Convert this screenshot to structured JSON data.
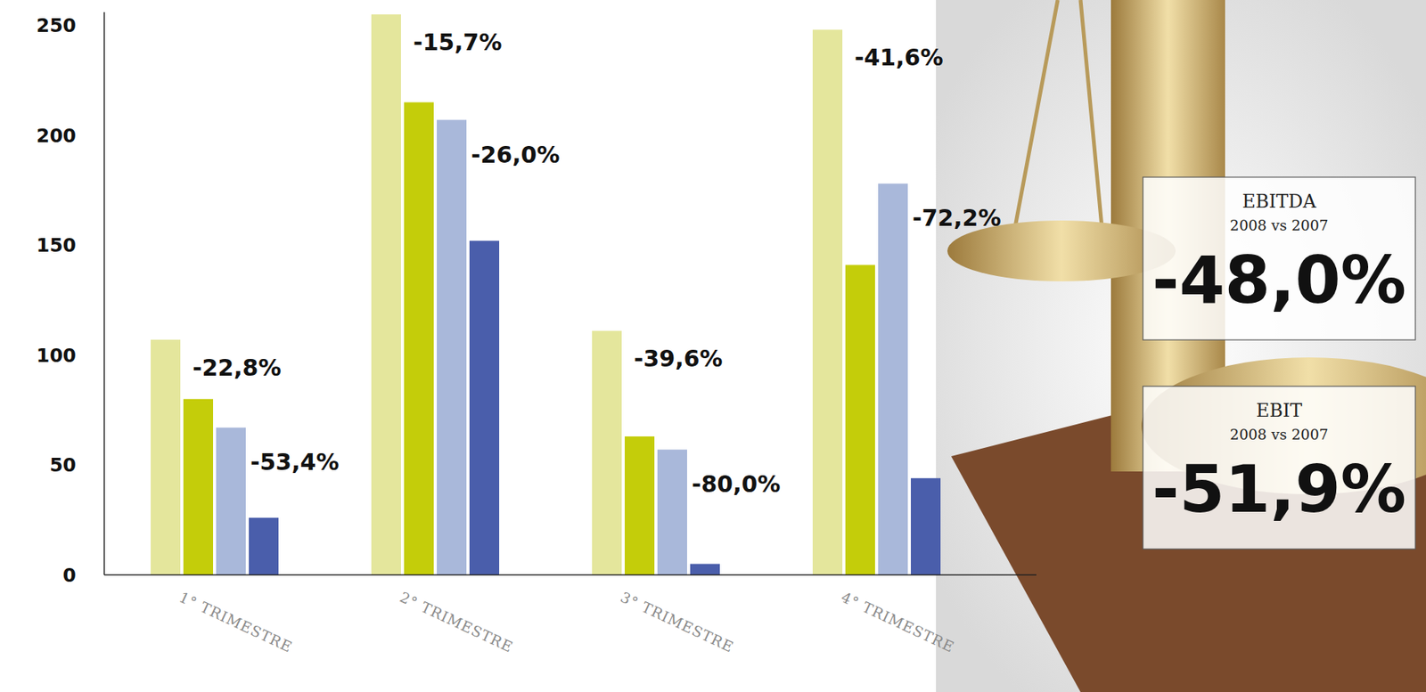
{
  "chart_data": {
    "type": "bar",
    "categories": [
      "1° TRIMESTRE",
      "2° TRIMESTRE",
      "3° TRIMESTRE",
      "4° TRIMESTRE"
    ],
    "series": [
      {
        "color": "#e4e69c",
        "values": [
          107,
          255,
          111,
          248
        ]
      },
      {
        "color": "#c4cd0a",
        "values": [
          80,
          215,
          63,
          141
        ]
      },
      {
        "color": "#a9b8da",
        "values": [
          67,
          207,
          57,
          178
        ]
      },
      {
        "color": "#4a5eab",
        "values": [
          26,
          152,
          5,
          44
        ]
      }
    ],
    "ylim": [
      0,
      256
    ],
    "yticks": [
      0,
      50,
      100,
      150,
      200,
      250
    ],
    "grid": false,
    "annotations": [
      "-22,8%",
      "-53,4%",
      "-15,7%",
      "-26,0%",
      "-39,6%",
      "-80,0%",
      "-41,6%",
      "-72,2%"
    ],
    "callouts": [
      {
        "title": "EBITDA",
        "subtitle": "2008 vs 2007",
        "value": "-48,0%"
      },
      {
        "title": "EBIT",
        "subtitle": "2008 vs 2007",
        "value": "-51,9%"
      }
    ]
  }
}
